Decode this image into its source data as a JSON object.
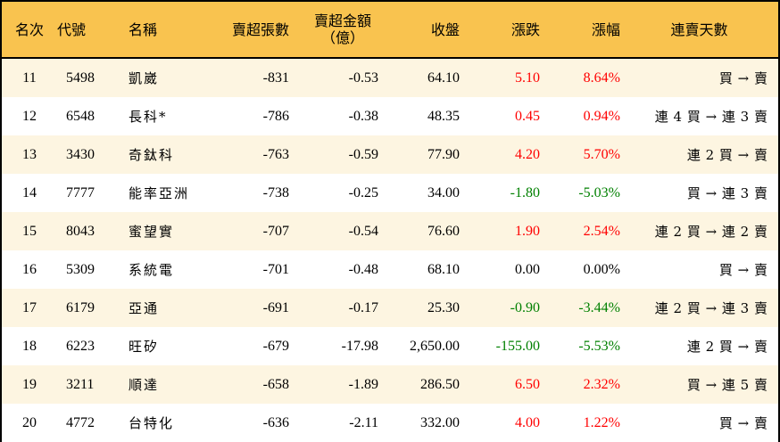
{
  "headers": {
    "rank": "名次",
    "code": "代號",
    "name": "名稱",
    "sell_vol": "賣超張數",
    "sell_amt_line1": "賣超金額",
    "sell_amt_line2": "（億）",
    "close": "收盤",
    "change": "漲跌",
    "pct": "漲幅",
    "days": "連賣天數"
  },
  "colors": {
    "header_bg": "#F9C34F",
    "row_alt": "#FDF5E1",
    "up": "#FF0000",
    "down": "#008000"
  },
  "rows": [
    {
      "rank": "11",
      "code": "5498",
      "name": "凱崴",
      "sell_vol": "-831",
      "sell_amt": "-0.53",
      "close": "64.10",
      "change": "5.10",
      "pct": "8.64%",
      "days": "買 → 賣",
      "dir": "up"
    },
    {
      "rank": "12",
      "code": "6548",
      "name": "長科*",
      "sell_vol": "-786",
      "sell_amt": "-0.38",
      "close": "48.35",
      "change": "0.45",
      "pct": "0.94%",
      "days": "連 4 買 → 連 3 賣",
      "dir": "up"
    },
    {
      "rank": "13",
      "code": "3430",
      "name": "奇鈦科",
      "sell_vol": "-763",
      "sell_amt": "-0.59",
      "close": "77.90",
      "change": "4.20",
      "pct": "5.70%",
      "days": "連 2 買 → 賣",
      "dir": "up"
    },
    {
      "rank": "14",
      "code": "7777",
      "name": "能率亞洲",
      "sell_vol": "-738",
      "sell_amt": "-0.25",
      "close": "34.00",
      "change": "-1.80",
      "pct": "-5.03%",
      "days": "買 → 連 3 賣",
      "dir": "down"
    },
    {
      "rank": "15",
      "code": "8043",
      "name": "蜜望實",
      "sell_vol": "-707",
      "sell_amt": "-0.54",
      "close": "76.60",
      "change": "1.90",
      "pct": "2.54%",
      "days": "連 2 買 → 連 2 賣",
      "dir": "up"
    },
    {
      "rank": "16",
      "code": "5309",
      "name": "系統電",
      "sell_vol": "-701",
      "sell_amt": "-0.48",
      "close": "68.10",
      "change": "0.00",
      "pct": "0.00%",
      "days": "買 → 賣",
      "dir": "flat"
    },
    {
      "rank": "17",
      "code": "6179",
      "name": "亞通",
      "sell_vol": "-691",
      "sell_amt": "-0.17",
      "close": "25.30",
      "change": "-0.90",
      "pct": "-3.44%",
      "days": "連 2 買 → 連 3 賣",
      "dir": "down"
    },
    {
      "rank": "18",
      "code": "6223",
      "name": "旺矽",
      "sell_vol": "-679",
      "sell_amt": "-17.98",
      "close": "2,650.00",
      "change": "-155.00",
      "pct": "-5.53%",
      "days": "連 2 買 → 賣",
      "dir": "down"
    },
    {
      "rank": "19",
      "code": "3211",
      "name": "順達",
      "sell_vol": "-658",
      "sell_amt": "-1.89",
      "close": "286.50",
      "change": "6.50",
      "pct": "2.32%",
      "days": "買 → 連 5 賣",
      "dir": "up"
    },
    {
      "rank": "20",
      "code": "4772",
      "name": "台特化",
      "sell_vol": "-636",
      "sell_amt": "-2.11",
      "close": "332.00",
      "change": "4.00",
      "pct": "1.22%",
      "days": "買 → 賣",
      "dir": "up"
    }
  ]
}
